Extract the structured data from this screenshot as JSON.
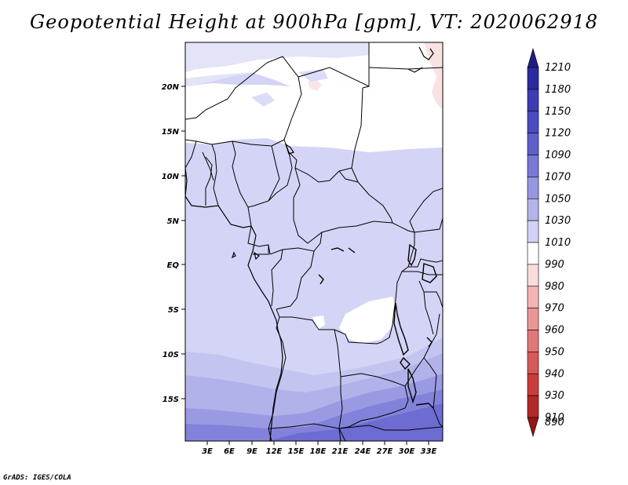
{
  "title": "Geopotential Height at 900hPa [gpm], VT: 2020062918",
  "footer": "GrADS: IGES/COLA",
  "map": {
    "lat_ticks": [
      "20N",
      "15N",
      "10N",
      "5N",
      "EQ",
      "5S",
      "10S",
      "15S"
    ],
    "lon_ticks": [
      "3E",
      "6E",
      "9E",
      "12E",
      "15E",
      "18E",
      "21E",
      "24E",
      "27E",
      "30E",
      "33E"
    ]
  },
  "colorbar": {
    "levels": [
      "1210",
      "1180",
      "1150",
      "1120",
      "1090",
      "1070",
      "1050",
      "1030",
      "1010",
      "990",
      "980",
      "970",
      "960",
      "950",
      "940",
      "930",
      "910",
      "890"
    ],
    "colors": [
      "#1e1e82",
      "#2a2aa0",
      "#3c3cb4",
      "#4b4bc3",
      "#5f5fcd",
      "#7878d7",
      "#9696e1",
      "#b4b4eb",
      "#d2d2f5",
      "#ffffff",
      "#fadcdc",
      "#f5b4b4",
      "#eb9696",
      "#e17878",
      "#d75a5a",
      "#cd3c3c",
      "#b42828",
      "#961414"
    ]
  }
}
